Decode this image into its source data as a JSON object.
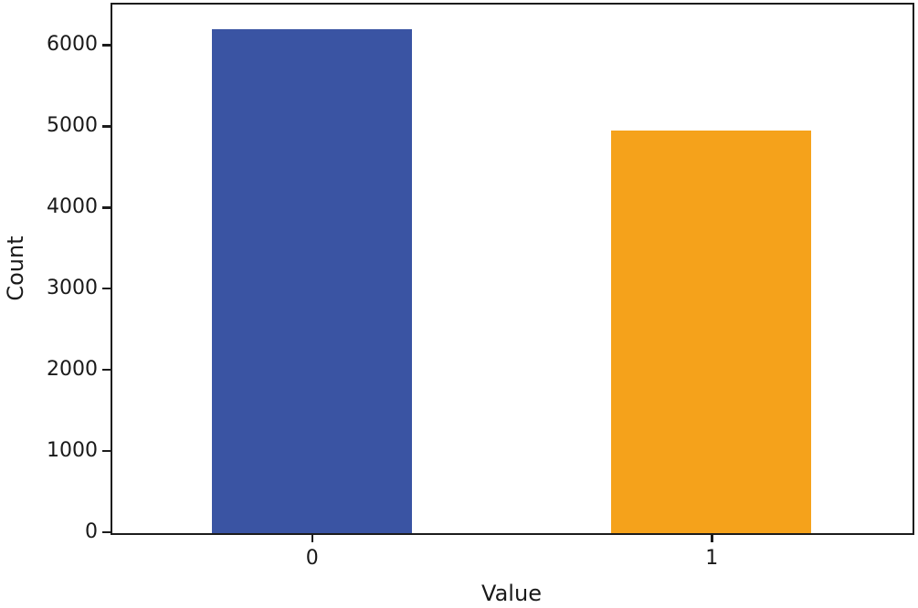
{
  "figure": {
    "background": "#ffffff",
    "spine_color": "#1c1c1c",
    "text_color": "#1a1a1a"
  },
  "chart_data": {
    "type": "bar",
    "title": "",
    "xlabel": "Value",
    "ylabel": "Count",
    "categories": [
      "0",
      "1"
    ],
    "values": [
      6200,
      4950
    ],
    "bar_colors": [
      "#3a54a3",
      "#f5a21b"
    ],
    "ylim": [
      0,
      6500
    ],
    "yticks": [
      0,
      1000,
      2000,
      3000,
      4000,
      5000,
      6000
    ],
    "ytick_labels": [
      "0",
      "1000",
      "2000",
      "3000",
      "4000",
      "5000",
      "6000"
    ],
    "grid": false,
    "legend": "none"
  }
}
